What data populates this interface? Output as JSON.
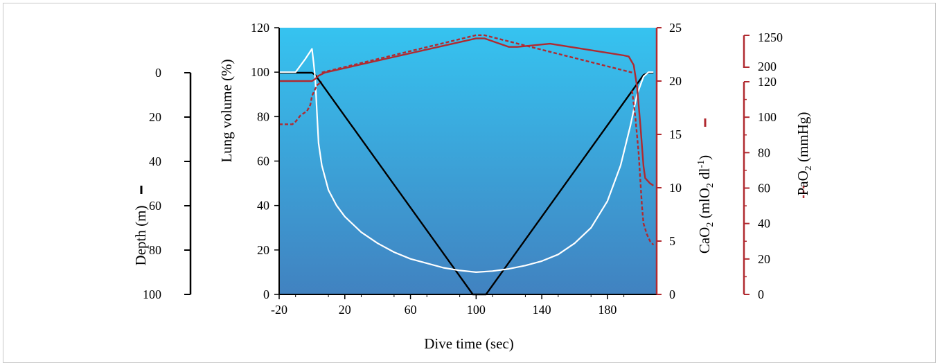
{
  "chart_data": {
    "type": "line",
    "xlabel": "Dive time (sec)",
    "xlim": [
      -20,
      210
    ],
    "xticks": [
      -20,
      20,
      60,
      100,
      140,
      180
    ],
    "axes": {
      "depth": {
        "label_text": "Depth (m)",
        "range": [
          0,
          100
        ],
        "inverted": true,
        "ticks": [
          0,
          20,
          40,
          60,
          80,
          100
        ]
      },
      "lung_volume": {
        "label_text": "Lung volume (%)",
        "range": [
          0,
          120
        ],
        "ticks": [
          0,
          20,
          40,
          60,
          80,
          100,
          120
        ]
      },
      "cao2": {
        "label_main": "CaO",
        "label_sub": "2",
        "label_rest": " (mlO",
        "label_sub2": "2",
        "label_rest2": " dl",
        "label_sup": "-1",
        "label_end": ")",
        "range": [
          0,
          25
        ],
        "ticks": [
          0,
          5,
          10,
          15,
          20,
          25
        ]
      },
      "pao2": {
        "label_main": "PaO",
        "label_sub": "2",
        "label_rest": " (mmHg)",
        "range": [
          0,
          120
        ],
        "ticks": [
          0,
          20,
          40,
          60,
          80,
          100,
          120
        ],
        "break_ticks": [
          "200",
          "1250"
        ]
      }
    },
    "series": [
      {
        "axis": "depth",
        "color": "#000000",
        "style": "solid",
        "points": [
          [
            -20,
            0
          ],
          [
            -5,
            0
          ],
          [
            0,
            0
          ],
          [
            2,
            1
          ],
          [
            98,
            100
          ],
          [
            106,
            100
          ],
          [
            202,
            1
          ],
          [
            205,
            0
          ],
          [
            208,
            0
          ]
        ]
      },
      {
        "axis": "lung_volume",
        "color": "#ffffff",
        "style": "solid",
        "points": [
          [
            -20,
            100
          ],
          [
            -10,
            100
          ],
          [
            -4,
            106
          ],
          [
            0,
            110.5
          ],
          [
            1,
            104
          ],
          [
            2,
            97
          ],
          [
            3,
            82
          ],
          [
            4,
            68
          ],
          [
            6,
            58
          ],
          [
            10,
            47
          ],
          [
            15,
            40
          ],
          [
            20,
            35
          ],
          [
            30,
            28
          ],
          [
            40,
            23
          ],
          [
            50,
            19
          ],
          [
            60,
            16
          ],
          [
            70,
            14
          ],
          [
            80,
            12
          ],
          [
            90,
            10.8
          ],
          [
            100,
            10
          ],
          [
            110,
            10.5
          ],
          [
            120,
            11.5
          ],
          [
            130,
            13
          ],
          [
            140,
            15
          ],
          [
            150,
            18
          ],
          [
            160,
            23
          ],
          [
            170,
            30
          ],
          [
            180,
            42
          ],
          [
            188,
            58
          ],
          [
            194,
            76
          ],
          [
            198,
            90
          ],
          [
            202,
            98
          ],
          [
            205,
            100
          ],
          [
            208,
            100
          ]
        ]
      },
      {
        "axis": "cao2",
        "color": "#b02a30",
        "style": "solid",
        "points": [
          [
            -20,
            20
          ],
          [
            -5,
            20
          ],
          [
            0,
            20
          ],
          [
            2,
            20.2
          ],
          [
            4,
            20.5
          ],
          [
            8,
            20.8
          ],
          [
            100,
            24
          ],
          [
            105,
            24
          ],
          [
            120,
            23.2
          ],
          [
            125,
            23.2
          ],
          [
            145,
            23.5
          ],
          [
            190,
            22.4
          ],
          [
            193,
            22.3
          ],
          [
            196,
            21.5
          ],
          [
            198,
            19.5
          ],
          [
            200,
            16
          ],
          [
            202,
            12
          ],
          [
            203,
            10.9
          ],
          [
            206,
            10.4
          ],
          [
            208,
            10.2
          ]
        ]
      },
      {
        "axis": "pao2",
        "color": "#b02a30",
        "style": "dashed",
        "points": [
          [
            -20,
            96
          ],
          [
            -12,
            96
          ],
          [
            -10,
            97.5
          ],
          [
            -7,
            101
          ],
          [
            -3,
            103.5
          ],
          [
            -1,
            107
          ],
          [
            0,
            112
          ],
          [
            3,
            118
          ],
          [
            6,
            120
          ]
        ],
        "points_top": [
          [
            6,
            120
          ],
          [
            100,
            124.2
          ],
          [
            105,
            124.2
          ],
          [
            195,
            120
          ]
        ],
        "points_after": [
          [
            195,
            115
          ],
          [
            197,
            100
          ],
          [
            199,
            80
          ],
          [
            201,
            50
          ],
          [
            202,
            40
          ],
          [
            204,
            34
          ],
          [
            206,
            30
          ],
          [
            208,
            28
          ]
        ]
      }
    ]
  }
}
